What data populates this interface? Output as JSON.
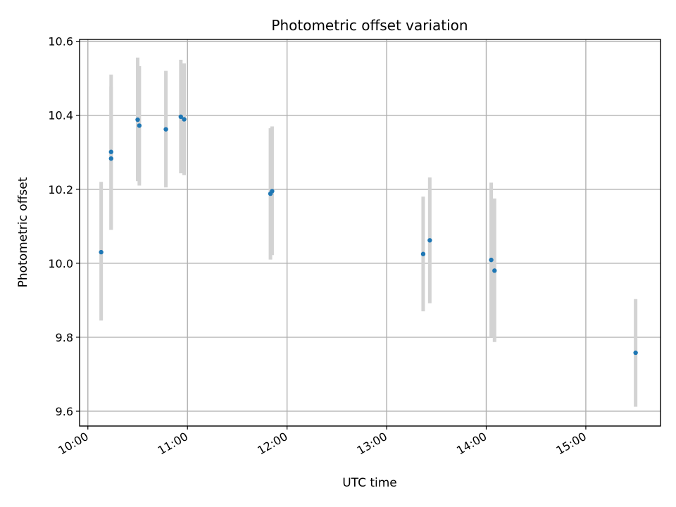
{
  "chart_data": {
    "type": "scatter",
    "title": "Photometric offset variation",
    "xlabel": "UTC time",
    "ylabel": "Photometric offset",
    "x_axis_type": "time",
    "xlim": [
      "09:55",
      "15:45"
    ],
    "ylim": [
      9.56,
      10.605
    ],
    "x_ticks": [
      "10:00",
      "11:00",
      "12:00",
      "13:00",
      "14:00",
      "15:00"
    ],
    "y_ticks": [
      9.6,
      9.8,
      10.0,
      10.2,
      10.4,
      10.6
    ],
    "y_tick_labels": [
      "9.6",
      "9.8",
      "10.0",
      "10.2",
      "10.4",
      "10.6"
    ],
    "grid": true,
    "marker_color": "#1f77b4",
    "errorbar_color": "#d3d3d3",
    "points": [
      {
        "x": "10:08",
        "y": 10.03,
        "ylow": 9.845,
        "yhigh": 10.22
      },
      {
        "x": "10:14",
        "y": 10.283,
        "ylow": 10.09,
        "yhigh": 10.478
      },
      {
        "x": "10:14",
        "y": 10.301,
        "ylow": 10.09,
        "yhigh": 10.51
      },
      {
        "x": "10:30",
        "y": 10.388,
        "ylow": 10.222,
        "yhigh": 10.556
      },
      {
        "x": "10:31",
        "y": 10.372,
        "ylow": 10.21,
        "yhigh": 10.533
      },
      {
        "x": "10:47",
        "y": 10.362,
        "ylow": 10.205,
        "yhigh": 10.52
      },
      {
        "x": "10:56",
        "y": 10.396,
        "ylow": 10.243,
        "yhigh": 10.55
      },
      {
        "x": "10:58",
        "y": 10.389,
        "ylow": 10.238,
        "yhigh": 10.54
      },
      {
        "x": "11:50",
        "y": 10.188,
        "ylow": 10.01,
        "yhigh": 10.365
      },
      {
        "x": "11:51",
        "y": 10.195,
        "ylow": 10.022,
        "yhigh": 10.37
      },
      {
        "x": "13:22",
        "y": 10.025,
        "ylow": 9.87,
        "yhigh": 10.18
      },
      {
        "x": "13:26",
        "y": 10.062,
        "ylow": 9.892,
        "yhigh": 10.232
      },
      {
        "x": "14:03",
        "y": 10.009,
        "ylow": 9.8,
        "yhigh": 10.218
      },
      {
        "x": "14:05",
        "y": 9.98,
        "ylow": 9.787,
        "yhigh": 10.175
      },
      {
        "x": "15:30",
        "y": 9.758,
        "ylow": 9.612,
        "yhigh": 9.903
      }
    ]
  }
}
